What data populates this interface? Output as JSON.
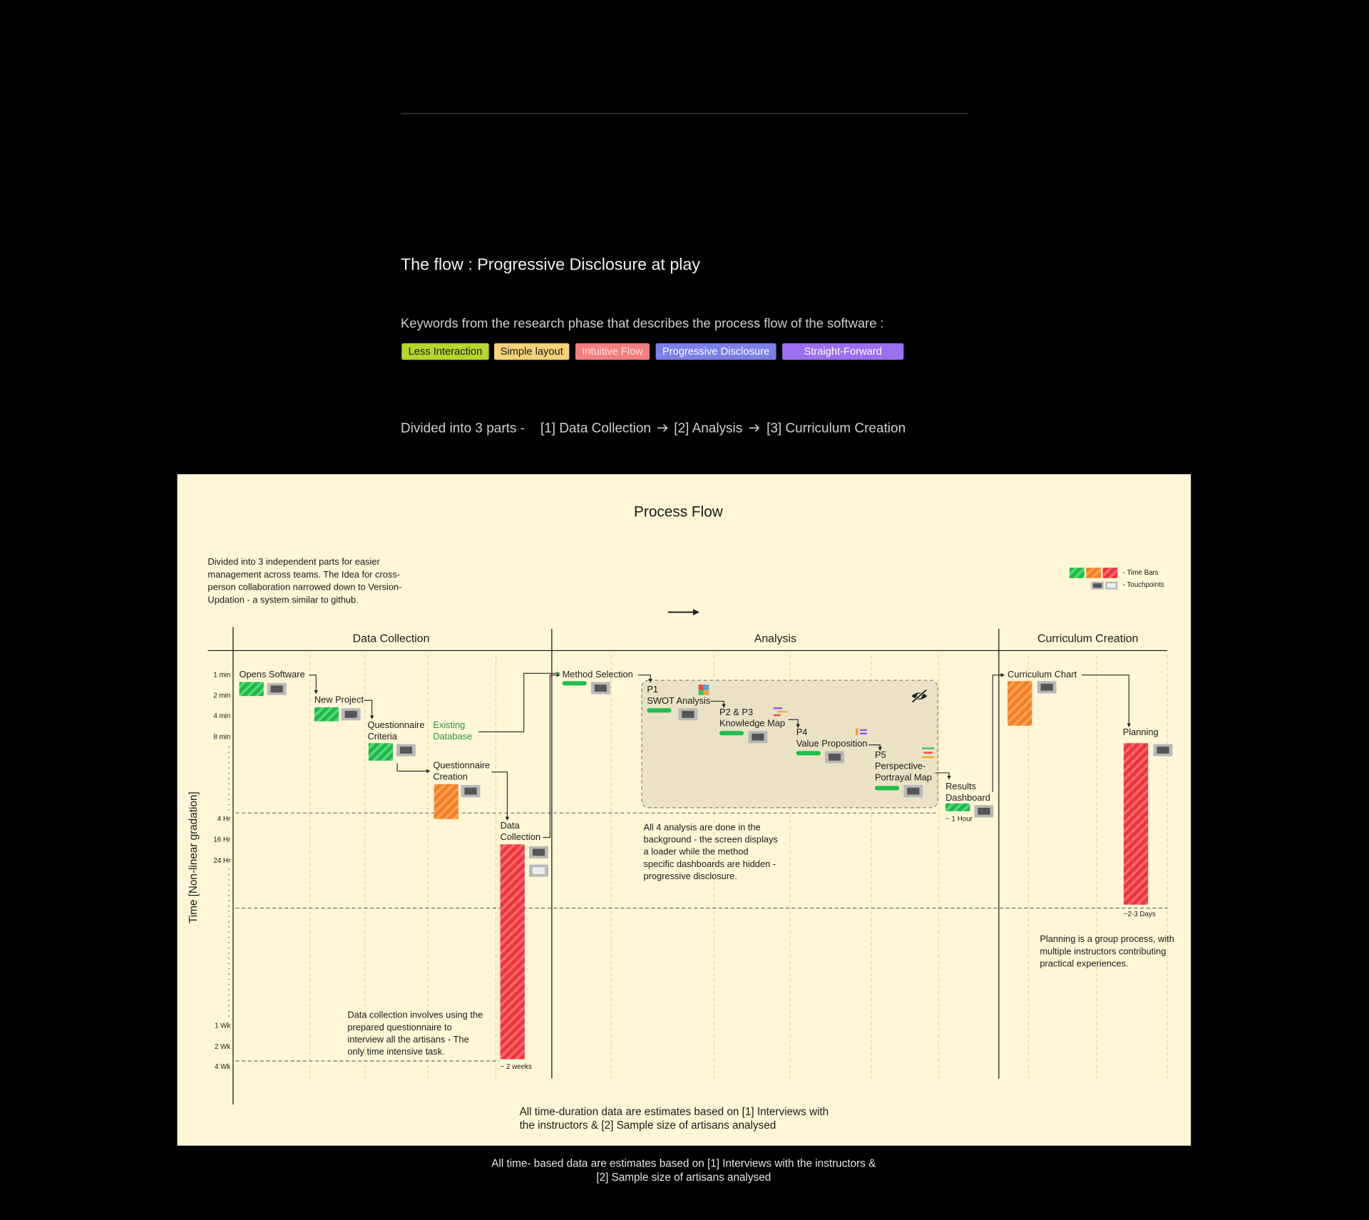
{
  "header": {
    "title": "The flow : Progressive Disclosure at play",
    "keywords_intro": "Keywords from the research phase that describes the process flow of the software :",
    "keywords": [
      "Less Interaction",
      "Simple layout",
      "Intuitive Flow",
      "Progressive Disclosure",
      "Straight-Forward"
    ],
    "parts_intro": "Divided into 3 parts -",
    "parts": [
      "[1] Data Collection",
      "[2] Analysis",
      "[3] Curriculum Creation"
    ]
  },
  "diagram": {
    "title": "Process Flow",
    "note": [
      "Divided into 3 independent parts for easier",
      "management across teams. The Idea for cross-",
      "person collaboration narrowed down to Version-",
      "Updation - a system similar to github."
    ],
    "legend": [
      "- Time Bars",
      "- Touchpoints"
    ],
    "phases": [
      "Data Collection",
      "Analysis",
      "Curriculum Creation"
    ],
    "time_axis_label": "Time [Non-linear gradation]",
    "time_ticks": [
      "1 min",
      "2 min",
      "4 min",
      "8 min",
      "4 Hr",
      "16 Hr",
      "24 Hr",
      "1 Wk",
      "2 Wk",
      "4 Wk"
    ],
    "steps": [
      {
        "label": [
          "Opens Software"
        ]
      },
      {
        "label": [
          "New Project"
        ]
      },
      {
        "label": [
          "Questionnaire",
          "Criteria"
        ]
      },
      {
        "label": [
          "Questionnaire",
          "Creation"
        ]
      },
      {
        "label": [
          "Data",
          "Collection"
        ],
        "duration": "~ 2 weeks"
      },
      {
        "label": [
          "Method Selection"
        ]
      },
      {
        "label": [
          "P1",
          "SWOT Analysis"
        ]
      },
      {
        "label": [
          "P2 & P3",
          "Knowledge Map"
        ]
      },
      {
        "label": [
          "P4",
          "Value Proposition"
        ]
      },
      {
        "label": [
          "P5",
          "Perspective-",
          "Portrayal Map"
        ]
      },
      {
        "label": [
          "Results",
          "Dashboard"
        ],
        "duration": "~ 1 Hour"
      },
      {
        "label": [
          "Curriculum Chart"
        ]
      },
      {
        "label": [
          "Planning"
        ],
        "duration": "~2-3 Days"
      }
    ],
    "data_source": [
      "Existing",
      "Database"
    ],
    "notes": [
      [
        "All 4 analysis are done in the",
        "background - the screen displays",
        "a loader while the method",
        "specific dashboards are hidden -",
        "progressive disclosure."
      ],
      [
        "Data collection involves using the",
        "prepared questionnaire to",
        "interview all the artisans - The",
        "only time intensive task."
      ],
      [
        "Planning is a group process, with",
        "multiple instructors contributing",
        "practical experiences."
      ]
    ],
    "footnote": [
      "All time-duration data are estimates based on [1] Interviews with",
      "the instructors & [2] Sample size of artisans analysed"
    ]
  },
  "caption": [
    "All time- based data are estimates based on [1] Interviews with the instructors &",
    "[2] Sample size of artisans analysed"
  ]
}
